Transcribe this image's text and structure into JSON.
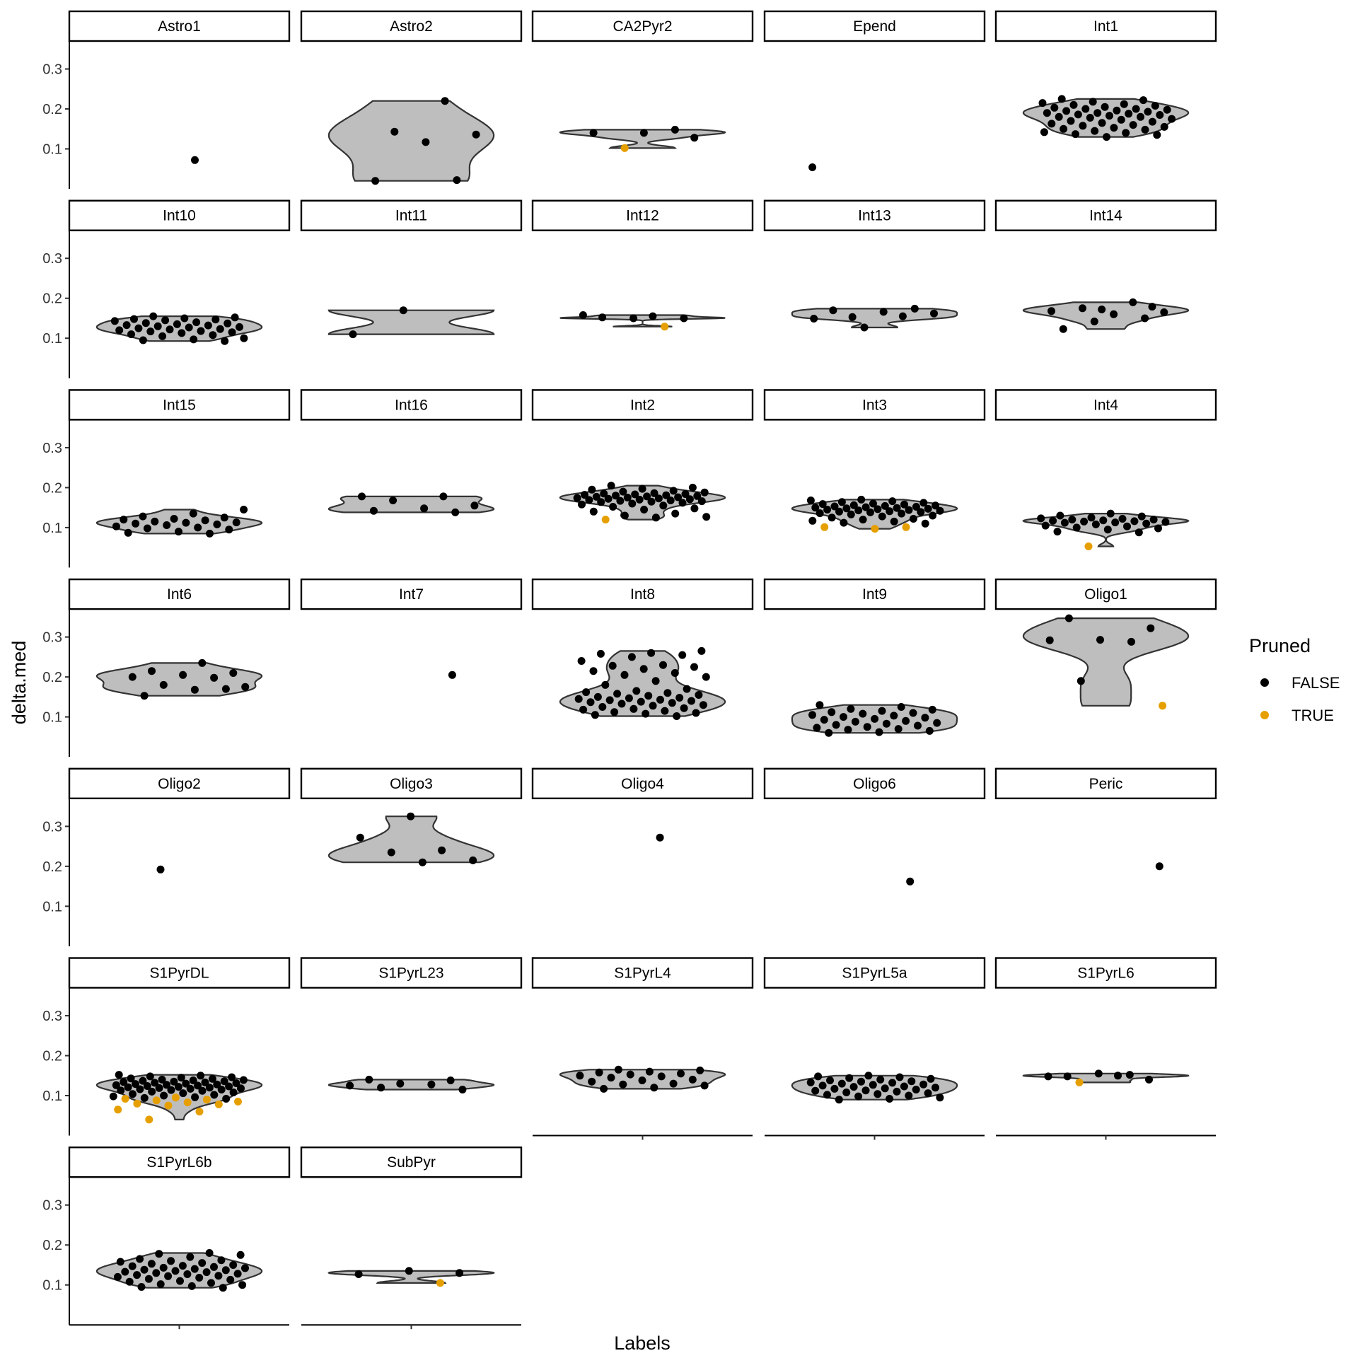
{
  "chart_data": {
    "type": "violin",
    "xlabel": "Labels",
    "ylabel": "delta.med",
    "ylim": [
      0,
      0.37
    ],
    "yticks": [
      "0.1",
      "0.2",
      "0.3"
    ],
    "grid": false,
    "legend": {
      "title": "Pruned",
      "position": "right",
      "entries": [
        {
          "label": "FALSE",
          "color": "#000000"
        },
        {
          "label": "TRUE",
          "color": "#E69F00"
        }
      ]
    },
    "violin_fill": "#BEBEBE",
    "violin_stroke": "#333333",
    "panels": [
      {
        "label": "Astro1",
        "false": [
          0.072
        ],
        "true": []
      },
      {
        "label": "Astro2",
        "false": [
          0.22,
          0.143,
          0.136,
          0.117,
          0.02,
          0.022
        ],
        "true": []
      },
      {
        "label": "CA2Pyr2",
        "false": [
          0.128,
          0.14,
          0.14,
          0.148
        ],
        "true": [
          0.102
        ]
      },
      {
        "label": "Epend",
        "false": [
          0.054
        ],
        "true": []
      },
      {
        "label": "Int1",
        "false": [
          0.225,
          0.222,
          0.218,
          0.215,
          0.212,
          0.21,
          0.208,
          0.205,
          0.203,
          0.2,
          0.2,
          0.198,
          0.196,
          0.195,
          0.193,
          0.19,
          0.19,
          0.188,
          0.186,
          0.185,
          0.183,
          0.18,
          0.18,
          0.178,
          0.175,
          0.173,
          0.17,
          0.168,
          0.165,
          0.163,
          0.16,
          0.158,
          0.155,
          0.153,
          0.15,
          0.148,
          0.145,
          0.142,
          0.14,
          0.137,
          0.135,
          0.13
        ],
        "true": []
      },
      {
        "label": "Int10",
        "false": [
          0.155,
          0.152,
          0.15,
          0.148,
          0.147,
          0.145,
          0.143,
          0.14,
          0.138,
          0.137,
          0.135,
          0.133,
          0.132,
          0.13,
          0.128,
          0.127,
          0.125,
          0.123,
          0.122,
          0.12,
          0.118,
          0.117,
          0.115,
          0.113,
          0.11,
          0.108,
          0.105,
          0.1,
          0.097,
          0.095,
          0.093
        ],
        "true": []
      },
      {
        "label": "Int11",
        "false": [
          0.17,
          0.11
        ],
        "true": []
      },
      {
        "label": "Int12",
        "false": [
          0.155,
          0.152,
          0.15,
          0.15,
          0.158
        ],
        "true": [
          0.129
        ]
      },
      {
        "label": "Int13",
        "false": [
          0.155,
          0.153,
          0.162,
          0.166,
          0.17,
          0.174,
          0.127,
          0.149
        ],
        "true": []
      },
      {
        "label": "Int14",
        "false": [
          0.179,
          0.172,
          0.168,
          0.19,
          0.175,
          0.165,
          0.16,
          0.123,
          0.15,
          0.142
        ],
        "true": []
      },
      {
        "label": "Int15",
        "false": [
          0.145,
          0.135,
          0.128,
          0.125,
          0.122,
          0.12,
          0.118,
          0.115,
          0.113,
          0.112,
          0.11,
          0.108,
          0.106,
          0.103,
          0.1,
          0.098,
          0.095,
          0.09,
          0.087,
          0.085
        ],
        "true": []
      },
      {
        "label": "Int16",
        "false": [
          0.178,
          0.178,
          0.168,
          0.155,
          0.148,
          0.142,
          0.138
        ],
        "true": []
      },
      {
        "label": "Int2",
        "false": [
          0.205,
          0.2,
          0.197,
          0.195,
          0.192,
          0.19,
          0.188,
          0.186,
          0.185,
          0.184,
          0.183,
          0.182,
          0.181,
          0.18,
          0.179,
          0.178,
          0.177,
          0.176,
          0.175,
          0.174,
          0.173,
          0.172,
          0.171,
          0.17,
          0.169,
          0.168,
          0.167,
          0.166,
          0.165,
          0.164,
          0.162,
          0.16,
          0.158,
          0.155,
          0.152,
          0.148,
          0.145,
          0.14,
          0.135,
          0.13,
          0.127,
          0.125
        ],
        "true": [
          0.12
        ]
      },
      {
        "label": "Int3",
        "false": [
          0.17,
          0.168,
          0.166,
          0.164,
          0.162,
          0.16,
          0.159,
          0.158,
          0.156,
          0.155,
          0.154,
          0.153,
          0.152,
          0.151,
          0.15,
          0.149,
          0.148,
          0.147,
          0.146,
          0.145,
          0.144,
          0.143,
          0.142,
          0.141,
          0.14,
          0.139,
          0.138,
          0.136,
          0.135,
          0.133,
          0.13,
          0.128,
          0.125,
          0.122,
          0.12,
          0.117,
          0.115,
          0.112,
          0.11
        ],
        "true": [
          0.097,
          0.101,
          0.101
        ]
      },
      {
        "label": "Int4",
        "false": [
          0.135,
          0.13,
          0.128,
          0.125,
          0.123,
          0.122,
          0.12,
          0.12,
          0.118,
          0.117,
          0.116,
          0.115,
          0.114,
          0.113,
          0.112,
          0.11,
          0.108,
          0.105,
          0.103,
          0.1,
          0.098,
          0.095,
          0.09,
          0.088
        ],
        "true": [
          0.053
        ]
      },
      {
        "label": "Int6",
        "false": [
          0.235,
          0.215,
          0.21,
          0.205,
          0.2,
          0.198,
          0.18,
          0.175,
          0.168,
          0.153,
          0.17
        ],
        "true": []
      },
      {
        "label": "Int7",
        "false": [
          0.205
        ],
        "true": []
      },
      {
        "label": "Int8",
        "false": [
          0.265,
          0.26,
          0.258,
          0.255,
          0.25,
          0.24,
          0.23,
          0.228,
          0.225,
          0.22,
          0.215,
          0.21,
          0.205,
          0.2,
          0.19,
          0.18,
          0.17,
          0.165,
          0.162,
          0.16,
          0.158,
          0.155,
          0.153,
          0.15,
          0.148,
          0.147,
          0.145,
          0.143,
          0.142,
          0.14,
          0.138,
          0.137,
          0.135,
          0.133,
          0.13,
          0.128,
          0.125,
          0.122,
          0.12,
          0.118,
          0.115,
          0.112,
          0.11,
          0.108,
          0.105,
          0.102
        ],
        "true": []
      },
      {
        "label": "Int9",
        "false": [
          0.13,
          0.125,
          0.12,
          0.118,
          0.115,
          0.112,
          0.11,
          0.108,
          0.105,
          0.103,
          0.1,
          0.098,
          0.095,
          0.093,
          0.09,
          0.088,
          0.085,
          0.083,
          0.08,
          0.078,
          0.075,
          0.073,
          0.07,
          0.068,
          0.065,
          0.062,
          0.06
        ],
        "true": []
      },
      {
        "label": "Oligo1",
        "false": [
          0.347,
          0.322,
          0.293,
          0.292,
          0.288,
          0.19
        ],
        "true": [
          0.128
        ]
      },
      {
        "label": "Oligo2",
        "false": [
          0.192
        ],
        "true": []
      },
      {
        "label": "Oligo3",
        "false": [
          0.325,
          0.272,
          0.24,
          0.235,
          0.215,
          0.21
        ],
        "true": []
      },
      {
        "label": "Oligo4",
        "false": [
          0.272
        ],
        "true": []
      },
      {
        "label": "Oligo6",
        "false": [
          0.162
        ],
        "true": []
      },
      {
        "label": "Peric",
        "false": [
          0.2
        ],
        "true": []
      },
      {
        "label": "S1PyrDL",
        "false": [
          0.152,
          0.15,
          0.148,
          0.146,
          0.145,
          0.143,
          0.142,
          0.14,
          0.139,
          0.138,
          0.137,
          0.136,
          0.135,
          0.134,
          0.133,
          0.132,
          0.131,
          0.13,
          0.129,
          0.128,
          0.127,
          0.126,
          0.125,
          0.124,
          0.123,
          0.122,
          0.121,
          0.12,
          0.119,
          0.118,
          0.117,
          0.116,
          0.115,
          0.114,
          0.113,
          0.112,
          0.11,
          0.108,
          0.106,
          0.104,
          0.102,
          0.1,
          0.098,
          0.096,
          0.094,
          0.092
        ],
        "true": [
          0.095,
          0.092,
          0.09,
          0.088,
          0.085,
          0.083,
          0.08,
          0.078,
          0.075,
          0.065,
          0.06,
          0.04
        ]
      },
      {
        "label": "S1PyrL23",
        "false": [
          0.14,
          0.138,
          0.13,
          0.125,
          0.128,
          0.12,
          0.115
        ],
        "true": []
      },
      {
        "label": "S1PyrL4",
        "false": [
          0.165,
          0.163,
          0.16,
          0.158,
          0.155,
          0.153,
          0.15,
          0.148,
          0.145,
          0.14,
          0.138,
          0.135,
          0.13,
          0.128,
          0.125,
          0.12,
          0.117
        ],
        "true": []
      },
      {
        "label": "S1PyrL5a",
        "false": [
          0.15,
          0.148,
          0.146,
          0.144,
          0.142,
          0.14,
          0.138,
          0.136,
          0.135,
          0.133,
          0.132,
          0.13,
          0.128,
          0.127,
          0.125,
          0.123,
          0.122,
          0.12,
          0.118,
          0.117,
          0.115,
          0.113,
          0.112,
          0.11,
          0.108,
          0.106,
          0.104,
          0.102,
          0.1,
          0.098,
          0.095,
          0.092,
          0.09
        ],
        "true": []
      },
      {
        "label": "S1PyrL6",
        "false": [
          0.15,
          0.148,
          0.14,
          0.155,
          0.148,
          0.152
        ],
        "true": [
          0.133
        ]
      },
      {
        "label": "S1PyrL6b",
        "false": [
          0.18,
          0.178,
          0.175,
          0.17,
          0.165,
          0.162,
          0.16,
          0.158,
          0.155,
          0.153,
          0.15,
          0.148,
          0.147,
          0.145,
          0.143,
          0.142,
          0.14,
          0.138,
          0.137,
          0.135,
          0.133,
          0.132,
          0.13,
          0.128,
          0.127,
          0.125,
          0.123,
          0.122,
          0.12,
          0.118,
          0.115,
          0.113,
          0.11,
          0.108,
          0.105,
          0.102,
          0.1,
          0.097,
          0.095,
          0.093
        ],
        "true": []
      },
      {
        "label": "SubPyr",
        "false": [
          0.13,
          0.135,
          0.127
        ],
        "true": [
          0.105
        ]
      }
    ]
  }
}
